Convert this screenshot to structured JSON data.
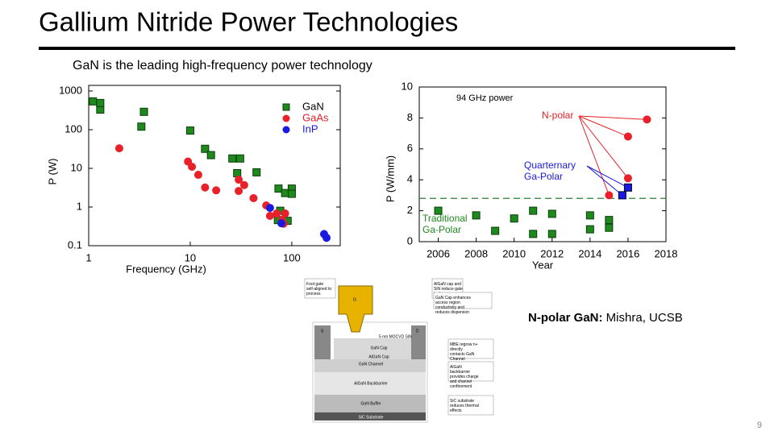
{
  "title": "Gallium Nitride Power Technologies",
  "subtitle": "GaN is the leading high-frequency power technology",
  "chart_data": [
    {
      "type": "scatter",
      "x_label": "Frequency (GHz)",
      "y_label": "P (W)",
      "log_x": true,
      "log_y": true,
      "xlim": [
        1,
        300
      ],
      "ylim": [
        0.1,
        1000
      ],
      "xticks": [
        1,
        10,
        100
      ],
      "yticks": [
        0.1,
        1,
        10,
        100,
        1000
      ],
      "legend": "upper-right",
      "series": [
        {
          "name": "GaN",
          "color": "#1e8a1e",
          "marker": "square",
          "x": [
            1.1,
            1.3,
            1.3,
            3.5,
            3.3,
            10,
            14,
            16,
            26,
            31,
            29,
            45,
            74,
            86,
            100,
            100,
            77,
            91,
            73
          ],
          "values": [
            540,
            330,
            490,
            290,
            120,
            95,
            32,
            22,
            18,
            18,
            7.5,
            7.9,
            3,
            2.3,
            3,
            2.2,
            0.8,
            0.44,
            0.46
          ]
        },
        {
          "name": "GaAs",
          "color": "#e8202a",
          "marker": "circle",
          "x": [
            2,
            9.5,
            10.4,
            14,
            18,
            12,
            30,
            30,
            34,
            42,
            56,
            61,
            71,
            80,
            86,
            83
          ],
          "values": [
            33,
            15,
            11,
            3.2,
            2.7,
            6.8,
            5.1,
            2.6,
            3.7,
            1.7,
            1.1,
            0.59,
            0.68,
            0.46,
            0.68,
            0.37
          ]
        },
        {
          "name": "InP",
          "color": "#1a1ae0",
          "marker": "circle",
          "x": [
            61,
            79,
            208,
            220
          ],
          "values": [
            0.95,
            0.38,
            0.2,
            0.16
          ]
        }
      ]
    },
    {
      "type": "scatter",
      "title": "94 GHz power",
      "x_label": "Year",
      "y_label": "P (W/mm)",
      "log_x": false,
      "log_y": false,
      "xlim": [
        2005,
        2018
      ],
      "ylim": [
        0,
        10
      ],
      "xticks": [
        2006,
        2008,
        2010,
        2012,
        2014,
        2016,
        2018
      ],
      "yticks": [
        0,
        2,
        4,
        6,
        8,
        10
      ],
      "reference_line": 2.8,
      "series": [
        {
          "name": "Traditional Ga-Polar",
          "color": "#1e8a1e",
          "marker": "square",
          "x": [
            2006,
            2008,
            2009,
            2010,
            2011,
            2012,
            2011,
            2012,
            2014,
            2014,
            2015,
            2015
          ],
          "values": [
            2.0,
            1.7,
            0.7,
            1.5,
            2.0,
            1.8,
            0.5,
            0.5,
            1.7,
            0.8,
            1.4,
            0.9
          ]
        },
        {
          "name": "N-polar",
          "color": "#e8202a",
          "marker": "circle",
          "x": [
            2017,
            2016,
            2016,
            2015
          ],
          "values": [
            7.9,
            6.8,
            4.1,
            3.0
          ]
        },
        {
          "name": "Quarternary Ga-Polar",
          "color": "#1a1ae0",
          "marker": "square",
          "x": [
            2016,
            2015.7
          ],
          "values": [
            3.5,
            3.0
          ]
        }
      ]
    }
  ],
  "diagram": {
    "callouts": [
      "Foot gate self-aligned to process",
      "AlGaN cap and SiN reduce gate leakage",
      "GaN Cap enhances access region conductivity and reduces dispersion",
      "MBE regrow n+ directly contacts GaN Channel",
      "AlGaN backbarrier provides charge and channel confinement",
      "SiC substrate reduces thermal effects"
    ],
    "labels": [
      "G",
      "5 nm MOCVD SiN",
      "S",
      "D",
      "GaN Cap",
      "AlGaN Cap",
      "GaN Channel",
      "AlGaN Backbarrier",
      "GaN Buffer",
      "SiC Substrate"
    ]
  },
  "caption": {
    "bold": "N-polar GaN:",
    "text": " Mishra, UCSB"
  },
  "page_number": "9"
}
